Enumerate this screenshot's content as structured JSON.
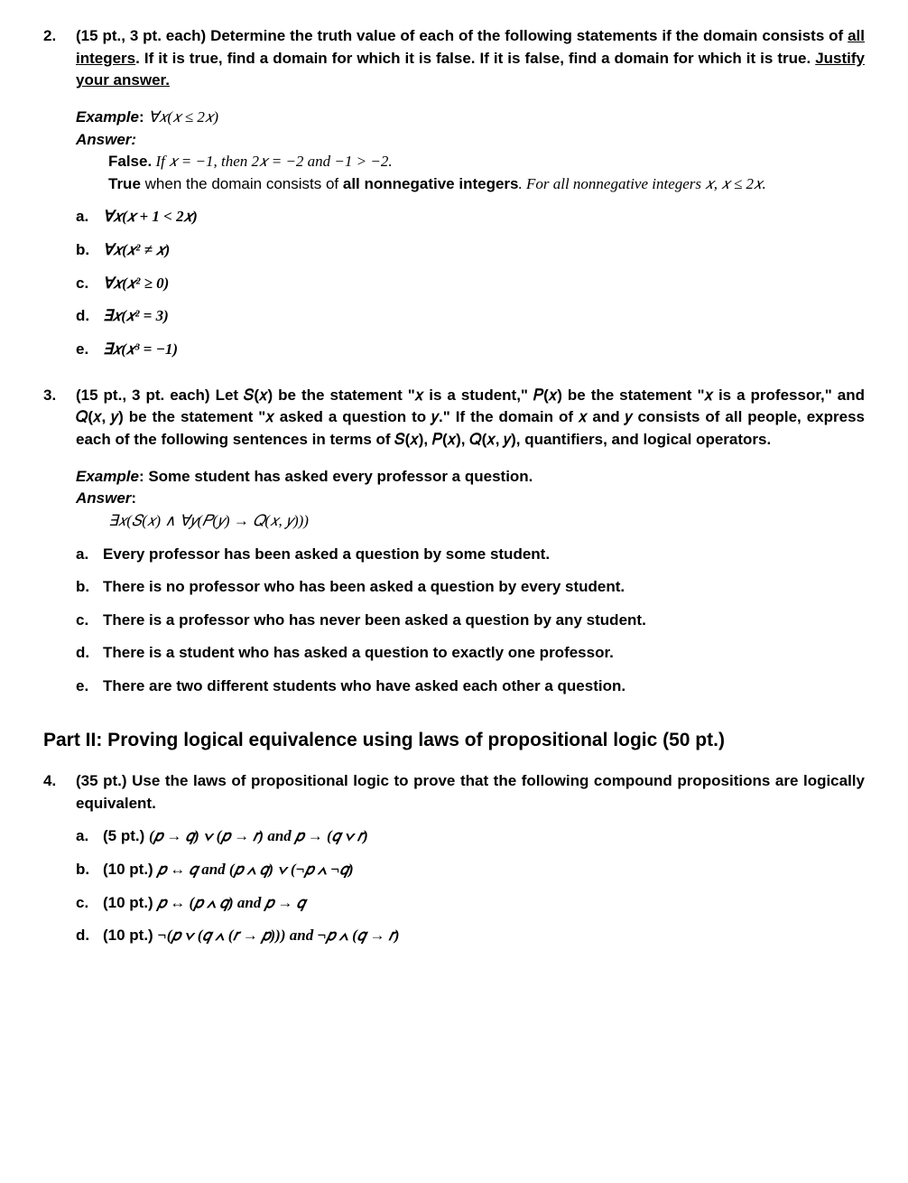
{
  "q2": {
    "num": "2.",
    "prompt_a": "(15 pt., 3 pt. each) Determine the truth value of each of the following statements if the domain consists of ",
    "prompt_u": "all integers",
    "prompt_b": ". If it is true, find a domain for which it is false. If it is false, find a domain for which it is true. ",
    "prompt_u2": "Justify your answer.",
    "example_label": "Example",
    "example_colon": ": ",
    "example_math": "∀𝑥(𝑥 ≤ 2𝑥)",
    "answer_label": "Answer:",
    "ans_false": "False.",
    "ans_false_rest": " If 𝑥 = −1, then 2𝑥 = −2 and −1 > −2.",
    "ans_true": "True",
    "ans_true_rest_a": " when the domain consists of ",
    "ans_true_bold": "all nonnegative integers",
    "ans_true_rest_b": ". For all nonnegative integers 𝑥, 𝑥 ≤ 2𝑥.",
    "items": {
      "a": {
        "label": "a.",
        "math": "∀𝑥(𝑥 + 1 < 2𝑥)"
      },
      "b": {
        "label": "b.",
        "math": "∀𝑥(𝑥² ≠ 𝑥)"
      },
      "c": {
        "label": "c.",
        "math": "∀𝑥(𝑥² ≥ 0)"
      },
      "d": {
        "label": "d.",
        "math": "∃𝑥(𝑥² = 3)"
      },
      "e": {
        "label": "e.",
        "math": "∃𝑥(𝑥³ = −1)"
      }
    }
  },
  "q3": {
    "num": "3.",
    "prompt": "(15 pt., 3 pt. each) Let 𝑆(𝑥) be the statement \"𝑥 is a student,\" 𝑃(𝑥) be the statement \"𝑥 is a professor,\" and 𝑄(𝑥, 𝑦) be the statement \"𝑥 asked a question to 𝑦.\" If the domain of 𝑥 and 𝑦 consists of all people, express each of the following sentences in terms of 𝑆(𝑥), 𝑃(𝑥), 𝑄(𝑥, 𝑦), quantifiers, and logical operators.",
    "example_label": "Example",
    "example_text": ": Some student has asked every professor a question.",
    "answer_label": "Answer",
    "answer_colon": ":",
    "answer_math": "∃𝑥(𝑆(𝑥) ∧ ∀𝑦(𝑃(𝑦) → 𝑄(𝑥, 𝑦)))",
    "items": {
      "a": {
        "label": "a.",
        "text": "Every professor has been asked a question by some student."
      },
      "b": {
        "label": "b.",
        "text": "There is no professor who has been asked a question by every student."
      },
      "c": {
        "label": "c.",
        "text": "There is a professor who has never been asked a question by any student."
      },
      "d": {
        "label": "d.",
        "text": "There is a student who has asked a question to exactly one professor."
      },
      "e": {
        "label": "e.",
        "text": "There are two different students who have asked each other a question."
      }
    }
  },
  "part2_header": "Part II: Proving logical equivalence using laws of propositional logic (50 pt.)",
  "q4": {
    "num": "4.",
    "prompt": "(35 pt.) Use the laws of propositional logic to prove that the following compound propositions are logically equivalent.",
    "items": {
      "a": {
        "label": "a.",
        "pts": "(5 pt.) ",
        "math": "(𝑝 → 𝑞) ∨ (𝑝 → 𝑟) and 𝑝 → (𝑞 ∨ 𝑟)"
      },
      "b": {
        "label": "b.",
        "pts": "(10 pt.) ",
        "math": "𝑝 ↔ 𝑞 and (𝑝 ∧ 𝑞) ∨ (¬𝑝 ∧ ¬𝑞)"
      },
      "c": {
        "label": "c.",
        "pts": "(10 pt.) ",
        "math": "𝑝 ↔ (𝑝 ∧ 𝑞) and 𝑝 → 𝑞"
      },
      "d": {
        "label": "d.",
        "pts": "(10 pt.) ",
        "math": "¬(𝑝 ∨ (𝑞 ∧ (𝑟 → 𝑝))) and ¬𝑝 ∧ (𝑞 → 𝑟)"
      }
    }
  }
}
